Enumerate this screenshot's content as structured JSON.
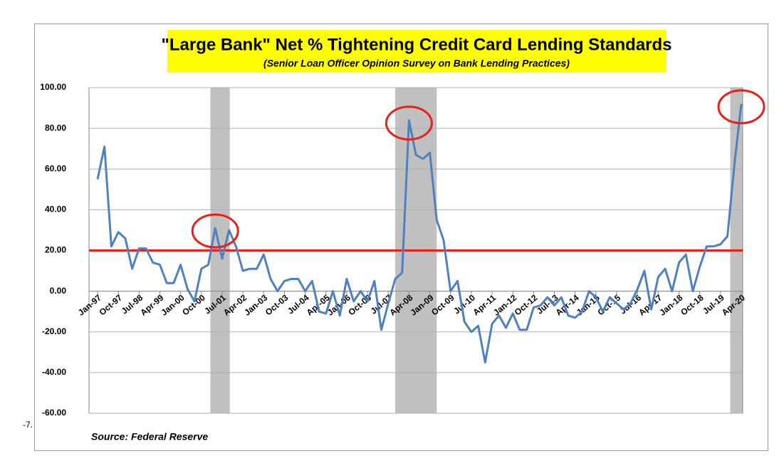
{
  "chart_data": {
    "type": "line",
    "title": "\"Large Bank\" Net % Tightening Credit Card Lending Standards",
    "subtitle": "(Senior Loan Officer Opinion Survey on Bank Lending Practices)",
    "source": "Source: Federal Reserve",
    "stray_text": "-7.",
    "categories": [
      "Jan-97",
      null,
      null,
      "Oct-97",
      null,
      null,
      "Jul-98",
      null,
      null,
      "Apr-99",
      null,
      null,
      "Jan-00",
      null,
      null,
      "Oct-00",
      null,
      null,
      "Jul-01",
      null,
      null,
      "Apr-02",
      null,
      null,
      "Jan-03",
      null,
      null,
      "Oct-03",
      null,
      null,
      "Jul-04",
      null,
      null,
      "Apr-05",
      null,
      null,
      "Jan-06",
      null,
      null,
      "Oct-06",
      null,
      null,
      "Jul-07",
      null,
      null,
      "Apr-08",
      null,
      null,
      "Jan-09",
      null,
      null,
      "Oct-09",
      null,
      null,
      "Jul-10",
      null,
      null,
      "Apr-11",
      null,
      null,
      "Jan-12",
      null,
      null,
      "Oct-12",
      null,
      null,
      "Jul-13",
      null,
      null,
      "Apr-14",
      null,
      null,
      "Jan-15",
      null,
      null,
      "Oct-15",
      null,
      null,
      "Jul-16",
      null,
      null,
      "Apr-17",
      null,
      null,
      "Jan-18",
      null,
      null,
      "Oct-18",
      null,
      null,
      "Jul-19",
      null,
      null,
      "Apr-20"
    ],
    "series": [
      {
        "color": "#4f81bd",
        "values": [
          55,
          71,
          22,
          29,
          26,
          11,
          21,
          21,
          14,
          13,
          4,
          4,
          13,
          1,
          -5,
          11,
          13,
          31,
          16,
          30,
          22,
          10,
          11,
          11,
          18,
          6,
          0,
          5,
          6,
          6,
          0,
          5,
          -10,
          -11,
          0,
          -12,
          6,
          -5,
          0,
          -5,
          5,
          -19,
          -6,
          6,
          9,
          84,
          67,
          65,
          68,
          35,
          25,
          0,
          5,
          -15,
          -20,
          -17,
          -35,
          -16,
          -12,
          -18,
          -11,
          -19,
          -19,
          -8,
          -7,
          -3,
          -7,
          -3,
          -12,
          -13,
          -10,
          0,
          -3,
          -10,
          -3,
          -6,
          -9,
          -6,
          1,
          10,
          -9,
          7,
          11,
          0,
          14,
          18,
          0,
          12,
          22,
          22,
          23,
          27,
          62,
          92
        ]
      }
    ],
    "ylim": [
      -60,
      100
    ],
    "yticks": [
      {
        "value": -60,
        "label": "-60.00"
      },
      {
        "value": -40,
        "label": "-40.00"
      },
      {
        "value": -20,
        "label": "-20.00"
      },
      {
        "value": 0,
        "label": "0.00"
      },
      {
        "value": 20,
        "label": "20.00"
      },
      {
        "value": 40,
        "label": "40.00"
      },
      {
        "value": 60,
        "label": "60.00"
      },
      {
        "value": 80,
        "label": "80.00"
      },
      {
        "value": 100,
        "label": "100.00"
      }
    ],
    "grid": true,
    "reference_line": {
      "value": 20,
      "color": "#e8201c"
    },
    "shaded_ranges": [
      [
        16.3,
        19.1
      ],
      [
        43,
        49
      ],
      [
        91.4,
        93.2
      ]
    ],
    "highlight_points": [
      17,
      45,
      93
    ]
  }
}
